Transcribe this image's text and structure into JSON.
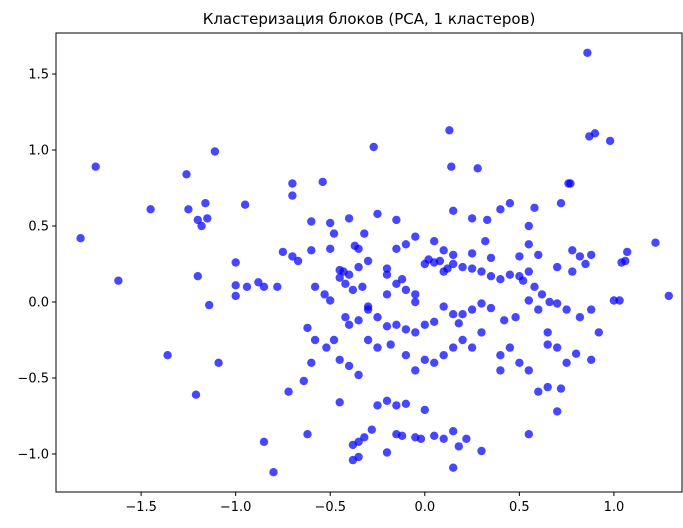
{
  "chart_data": {
    "type": "scatter",
    "title": "Кластеризация блоков (PCA, 1 кластеров)",
    "xlabel": "",
    "ylabel": "",
    "xlim": [
      -1.95,
      1.36
    ],
    "ylim": [
      -1.25,
      1.77
    ],
    "xticks": [
      -1.5,
      -1.0,
      -0.5,
      0.0,
      0.5,
      1.0
    ],
    "yticks": [
      -1.0,
      -0.5,
      0.0,
      0.5,
      1.0,
      1.5
    ],
    "xtick_labels": [
      "−1.5",
      "−1.0",
      "−0.5",
      "0.0",
      "0.5",
      "1.0"
    ],
    "ytick_labels": [
      "−1.0",
      "−0.5",
      "0.0",
      "0.5",
      "1.0",
      "1.5"
    ],
    "grid": false,
    "legend": "none",
    "marker_color": "#0000ff",
    "series": [
      {
        "points": [
          [
            0.86,
            1.64
          ],
          [
            0.87,
            1.09
          ],
          [
            0.9,
            1.11
          ],
          [
            0.98,
            1.06
          ],
          [
            0.13,
            1.13
          ],
          [
            -0.27,
            1.02
          ],
          [
            0.76,
            0.78
          ],
          [
            0.77,
            0.78
          ],
          [
            -1.74,
            0.89
          ],
          [
            -1.26,
            0.84
          ],
          [
            -1.11,
            0.99
          ],
          [
            0.14,
            0.89
          ],
          [
            0.28,
            0.88
          ],
          [
            -0.7,
            0.78
          ],
          [
            -0.54,
            0.79
          ],
          [
            -1.82,
            0.42
          ],
          [
            -1.45,
            0.61
          ],
          [
            -1.25,
            0.61
          ],
          [
            -1.2,
            0.54
          ],
          [
            -1.15,
            0.55
          ],
          [
            -1.16,
            0.65
          ],
          [
            -1.18,
            0.5
          ],
          [
            -0.95,
            0.64
          ],
          [
            -0.7,
            0.7
          ],
          [
            -0.6,
            0.53
          ],
          [
            -0.5,
            0.52
          ],
          [
            -0.4,
            0.55
          ],
          [
            -0.25,
            0.58
          ],
          [
            -0.15,
            0.54
          ],
          [
            -0.48,
            0.45
          ],
          [
            -0.32,
            0.45
          ],
          [
            0.15,
            0.6
          ],
          [
            0.25,
            0.55
          ],
          [
            0.33,
            0.54
          ],
          [
            0.4,
            0.61
          ],
          [
            0.45,
            0.65
          ],
          [
            0.58,
            0.62
          ],
          [
            0.55,
            0.5
          ],
          [
            0.72,
            0.65
          ],
          [
            -1.62,
            0.14
          ],
          [
            -1.2,
            0.17
          ],
          [
            -1.0,
            0.26
          ],
          [
            -1.14,
            -0.02
          ],
          [
            -1.0,
            0.11
          ],
          [
            -0.94,
            0.1
          ],
          [
            -0.88,
            0.13
          ],
          [
            -0.85,
            0.1
          ],
          [
            -0.78,
            0.1
          ],
          [
            -1.0,
            0.04
          ],
          [
            -0.75,
            0.33
          ],
          [
            -0.7,
            0.3
          ],
          [
            -0.67,
            0.27
          ],
          [
            -0.6,
            0.34
          ],
          [
            -0.5,
            0.35
          ],
          [
            -0.37,
            0.37
          ],
          [
            -0.35,
            0.35
          ],
          [
            -0.45,
            0.21
          ],
          [
            -0.43,
            0.2
          ],
          [
            -0.4,
            0.18
          ],
          [
            -0.35,
            0.23
          ],
          [
            -0.3,
            0.27
          ],
          [
            -0.2,
            0.22
          ],
          [
            -0.15,
            0.35
          ],
          [
            -0.1,
            0.38
          ],
          [
            -0.05,
            0.43
          ],
          [
            0.05,
            0.4
          ],
          [
            0.1,
            0.34
          ],
          [
            0.15,
            0.31
          ],
          [
            0.25,
            0.32
          ],
          [
            0.32,
            0.4
          ],
          [
            0.35,
            0.29
          ],
          [
            0.5,
            0.3
          ],
          [
            0.55,
            0.38
          ],
          [
            0.6,
            0.31
          ],
          [
            0.7,
            0.23
          ],
          [
            0.78,
            0.34
          ],
          [
            0.82,
            0.3
          ],
          [
            0.85,
            0.25
          ],
          [
            0.78,
            0.2
          ],
          [
            0.88,
            0.31
          ],
          [
            1.07,
            0.33
          ],
          [
            1.06,
            0.27
          ],
          [
            1.22,
            0.39
          ],
          [
            1.29,
            0.04
          ],
          [
            1.04,
            0.26
          ],
          [
            1.0,
            0.01
          ],
          [
            1.03,
            0.01
          ],
          [
            -0.58,
            0.1
          ],
          [
            -0.53,
            0.05
          ],
          [
            -0.5,
            0.01
          ],
          [
            -0.45,
            0.16
          ],
          [
            -0.42,
            0.12
          ],
          [
            -0.38,
            0.08
          ],
          [
            -0.33,
            0.1
          ],
          [
            -0.3,
            -0.03
          ],
          [
            -0.2,
            0.05
          ],
          [
            -0.2,
            0.18
          ],
          [
            -0.15,
            0.12
          ],
          [
            -0.12,
            0.15
          ],
          [
            -0.1,
            0.08
          ],
          [
            -0.05,
            0.05
          ],
          [
            -0.05,
            0.0
          ],
          [
            0.0,
            0.25
          ],
          [
            0.02,
            0.28
          ],
          [
            0.05,
            0.26
          ],
          [
            0.08,
            0.27
          ],
          [
            0.1,
            0.2
          ],
          [
            0.12,
            0.22
          ],
          [
            0.15,
            0.25
          ],
          [
            0.2,
            0.23
          ],
          [
            0.25,
            0.22
          ],
          [
            0.3,
            0.2
          ],
          [
            0.35,
            0.17
          ],
          [
            0.4,
            0.15
          ],
          [
            0.45,
            0.18
          ],
          [
            0.5,
            0.17
          ],
          [
            0.52,
            0.14
          ],
          [
            0.55,
            0.2
          ],
          [
            0.58,
            0.1
          ],
          [
            0.62,
            0.05
          ],
          [
            0.66,
            0.0
          ],
          [
            0.7,
            -0.01
          ],
          [
            0.75,
            -0.05
          ],
          [
            0.82,
            -0.1
          ],
          [
            0.88,
            -0.05
          ],
          [
            0.92,
            -0.2
          ],
          [
            -0.62,
            -0.17
          ],
          [
            -0.58,
            -0.25
          ],
          [
            -0.52,
            -0.3
          ],
          [
            -0.48,
            -0.25
          ],
          [
            -0.42,
            -0.1
          ],
          [
            -0.4,
            -0.15
          ],
          [
            -0.35,
            -0.12
          ],
          [
            -0.3,
            -0.05
          ],
          [
            -0.25,
            -0.1
          ],
          [
            -0.2,
            -0.16
          ],
          [
            -0.15,
            -0.15
          ],
          [
            -0.1,
            -0.18
          ],
          [
            -0.05,
            -0.2
          ],
          [
            0.0,
            -0.15
          ],
          [
            0.05,
            -0.13
          ],
          [
            0.1,
            -0.03
          ],
          [
            0.15,
            -0.08
          ],
          [
            0.18,
            -0.14
          ],
          [
            0.2,
            -0.08
          ],
          [
            0.25,
            -0.05
          ],
          [
            0.3,
            -0.01
          ],
          [
            0.35,
            -0.04
          ],
          [
            0.42,
            -0.12
          ],
          [
            0.48,
            -0.1
          ],
          [
            0.55,
            0.01
          ],
          [
            0.6,
            -0.05
          ],
          [
            0.65,
            -0.2
          ],
          [
            -1.36,
            -0.35
          ],
          [
            -1.21,
            -0.61
          ],
          [
            -1.09,
            -0.4
          ],
          [
            -0.72,
            -0.59
          ],
          [
            -0.64,
            -0.52
          ],
          [
            -0.6,
            -0.4
          ],
          [
            -0.45,
            -0.38
          ],
          [
            -0.4,
            -0.42
          ],
          [
            -0.35,
            -0.48
          ],
          [
            -0.3,
            -0.25
          ],
          [
            -0.25,
            -0.3
          ],
          [
            -0.18,
            -0.28
          ],
          [
            -0.1,
            -0.35
          ],
          [
            -0.05,
            -0.45
          ],
          [
            0.0,
            -0.38
          ],
          [
            0.05,
            -0.4
          ],
          [
            0.1,
            -0.35
          ],
          [
            0.15,
            -0.3
          ],
          [
            0.2,
            -0.25
          ],
          [
            0.25,
            -0.3
          ],
          [
            0.3,
            -0.2
          ],
          [
            0.4,
            -0.35
          ],
          [
            0.45,
            -0.3
          ],
          [
            0.5,
            -0.4
          ],
          [
            0.55,
            -0.45
          ],
          [
            0.65,
            -0.28
          ],
          [
            0.7,
            -0.3
          ],
          [
            0.75,
            -0.4
          ],
          [
            0.8,
            -0.34
          ],
          [
            0.88,
            -0.38
          ],
          [
            -0.85,
            -0.92
          ],
          [
            -0.8,
            -1.12
          ],
          [
            -0.62,
            -0.87
          ],
          [
            -0.45,
            -0.66
          ],
          [
            -0.38,
            -0.94
          ],
          [
            -0.35,
            -0.92
          ],
          [
            -0.32,
            -0.89
          ],
          [
            -0.28,
            -0.84
          ],
          [
            -0.25,
            -0.68
          ],
          [
            -0.2,
            -0.65
          ],
          [
            -0.15,
            -0.68
          ],
          [
            -0.15,
            -0.87
          ],
          [
            -0.12,
            -0.88
          ],
          [
            -0.1,
            -0.67
          ],
          [
            -0.05,
            -0.89
          ],
          [
            -0.02,
            -0.9
          ],
          [
            0.0,
            -0.71
          ],
          [
            0.05,
            -0.88
          ],
          [
            0.1,
            -0.9
          ],
          [
            0.15,
            -0.85
          ],
          [
            0.18,
            -0.95
          ],
          [
            0.22,
            -0.9
          ],
          [
            0.3,
            -0.98
          ],
          [
            0.4,
            -0.45
          ],
          [
            0.55,
            -0.87
          ],
          [
            0.6,
            -0.59
          ],
          [
            0.65,
            -0.56
          ],
          [
            0.7,
            -0.72
          ],
          [
            0.72,
            -0.57
          ],
          [
            -0.2,
            -0.99
          ],
          [
            -0.35,
            -1.02
          ],
          [
            0.15,
            -1.09
          ],
          [
            -0.38,
            -1.04
          ]
        ]
      }
    ]
  }
}
